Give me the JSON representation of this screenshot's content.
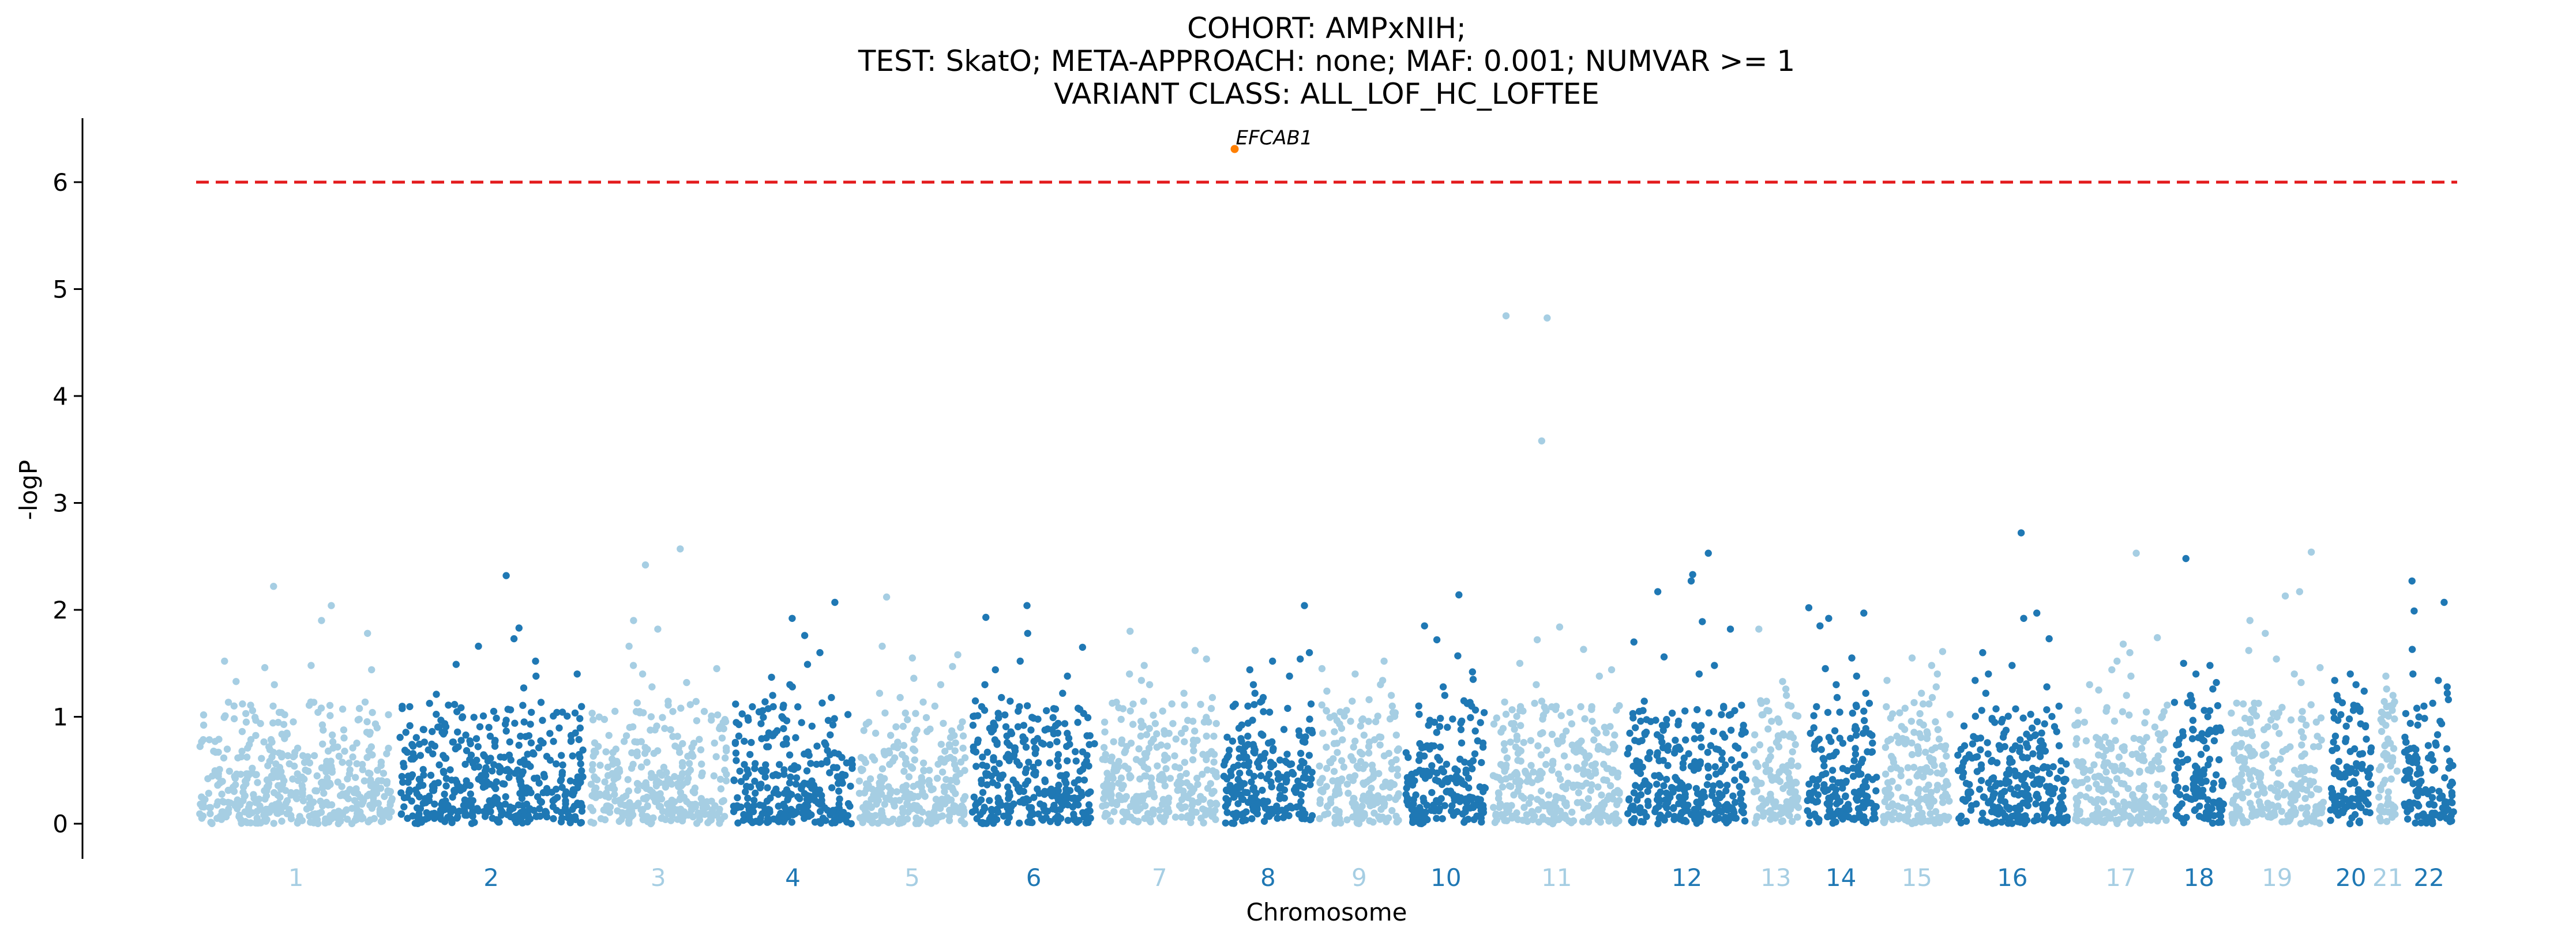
{
  "chart_data": {
    "type": "scatter",
    "subtype": "manhattan",
    "title_lines": [
      "COHORT: AMPxNIH;",
      "TEST: SkatO; META-APPROACH: none; MAF: 0.001; NUMVAR >= 1",
      "VARIANT CLASS: ALL_LOF_HC_LOFTEE"
    ],
    "xlabel": "Chromosome",
    "ylabel": "-logP",
    "ylim": [
      -0.3,
      6.6
    ],
    "yticks": [
      0,
      1,
      2,
      3,
      4,
      5,
      6
    ],
    "grid": false,
    "legend": "none",
    "significance_threshold": 6,
    "threshold_color": "#e31a1c",
    "colors": {
      "odd_chromosome": "#a6cee3",
      "even_chromosome": "#1f78b4",
      "highlight": "#ff7f00"
    },
    "chromosomes": [
      {
        "label": "1",
        "count": 460,
        "tail": [
          2.22,
          2.04,
          1.78,
          1.52,
          1.46,
          1.44,
          1.33,
          1.3,
          1.48,
          1.9
        ]
      },
      {
        "label": "2",
        "count": 440,
        "tail": [
          1.83,
          1.66,
          1.73,
          1.4,
          1.49,
          2.32,
          1.52,
          1.38,
          1.27,
          1.21
        ]
      },
      {
        "label": "3",
        "count": 330,
        "tail": [
          2.57,
          1.9,
          1.82,
          1.66,
          2.42,
          1.45,
          1.48,
          1.4,
          1.32,
          1.28
        ]
      },
      {
        "label": "4",
        "count": 290,
        "tail": [
          2.07,
          1.92,
          1.76,
          1.6,
          1.49,
          1.37,
          1.3,
          1.28,
          1.2,
          1.18
        ]
      },
      {
        "label": "5",
        "count": 260,
        "tail": [
          2.12,
          1.66,
          1.55,
          1.58,
          1.47,
          1.36,
          1.3,
          1.22,
          1.18,
          1.1
        ]
      },
      {
        "label": "6",
        "count": 300,
        "tail": [
          2.04,
          1.93,
          1.78,
          1.65,
          1.52,
          1.44,
          1.38,
          1.3,
          1.22,
          1.18
        ]
      },
      {
        "label": "7",
        "count": 280,
        "tail": [
          1.8,
          1.62,
          1.54,
          1.48,
          1.4,
          1.34,
          1.3,
          1.22,
          1.18,
          1.12
        ]
      },
      {
        "label": "8",
        "count": 220,
        "tail": [
          2.04,
          1.6,
          1.52,
          1.54,
          1.44,
          1.38,
          1.3,
          1.22,
          1.18,
          1.1
        ]
      },
      {
        "label": "9",
        "count": 200,
        "tail": [
          1.52,
          1.45,
          1.4,
          1.34,
          1.3,
          1.24,
          1.2,
          1.16,
          1.1,
          1.06
        ]
      },
      {
        "label": "10",
        "count": 200,
        "tail": [
          2.14,
          1.85,
          1.72,
          1.57,
          1.42,
          1.35,
          1.28,
          1.2,
          1.15,
          1.1
        ]
      },
      {
        "label": "11",
        "count": 310,
        "tail": [
          4.75,
          4.73,
          3.58,
          1.84,
          1.72,
          1.63,
          1.5,
          1.44,
          1.38,
          1.3
        ]
      },
      {
        "label": "12",
        "count": 290,
        "tail": [
          2.53,
          2.33,
          2.27,
          2.17,
          1.89,
          1.82,
          1.7,
          1.56,
          1.48,
          1.4
        ]
      },
      {
        "label": "13",
        "count": 120,
        "tail": [
          1.82,
          1.33,
          1.26,
          1.2,
          1.15,
          1.1,
          1.06,
          1.02,
          0.98,
          0.95
        ]
      },
      {
        "label": "14",
        "count": 180,
        "tail": [
          2.02,
          1.97,
          1.92,
          1.85,
          1.55,
          1.45,
          1.38,
          1.3,
          1.22,
          1.18
        ]
      },
      {
        "label": "15",
        "count": 170,
        "tail": [
          1.61,
          1.55,
          1.48,
          1.4,
          1.34,
          1.28,
          1.22,
          1.18,
          1.12,
          1.08
        ]
      },
      {
        "label": "16",
        "count": 270,
        "tail": [
          2.72,
          1.97,
          1.92,
          1.73,
          1.6,
          1.48,
          1.4,
          1.34,
          1.28,
          1.22
        ]
      },
      {
        "label": "17",
        "count": 230,
        "tail": [
          2.53,
          1.74,
          1.68,
          1.6,
          1.52,
          1.44,
          1.38,
          1.3,
          1.25,
          1.2
        ]
      },
      {
        "label": "18",
        "count": 130,
        "tail": [
          2.48,
          1.5,
          1.48,
          1.4,
          1.32,
          1.26,
          1.2,
          1.16,
          1.1,
          1.06
        ]
      },
      {
        "label": "19",
        "count": 230,
        "tail": [
          2.54,
          2.17,
          2.13,
          1.9,
          1.78,
          1.62,
          1.54,
          1.46,
          1.4,
          1.32
        ]
      },
      {
        "label": "20",
        "count": 110,
        "tail": [
          1.4,
          1.34,
          1.3,
          1.24,
          1.2,
          1.16,
          1.1,
          1.06,
          1.02,
          0.98
        ]
      },
      {
        "label": "21",
        "count": 60,
        "tail": [
          1.38,
          1.26,
          1.2,
          1.14,
          1.1,
          1.06,
          1.02,
          0.98,
          0.95,
          0.92
        ]
      },
      {
        "label": "22",
        "count": 130,
        "tail": [
          2.27,
          2.07,
          1.99,
          1.63,
          1.4,
          1.34,
          1.28,
          1.22,
          1.16,
          1.1
        ]
      }
    ],
    "highlighted_hits": [
      {
        "gene": "EFCAB1",
        "chromosome": "8",
        "neg_log_p": 6.31
      }
    ]
  }
}
